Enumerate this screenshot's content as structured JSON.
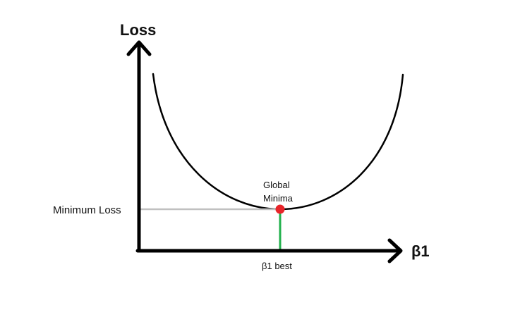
{
  "diagram": {
    "y_axis_label": "Loss",
    "x_axis_label": "β1",
    "minimum_loss_label": "Minimum Loss",
    "global_minima_label_line1": "Global",
    "global_minima_label_line2": "Minima",
    "best_param_label": "β1 best"
  },
  "colors": {
    "axis": "#000000",
    "curve": "#000000",
    "minimum_point": "#e8252a",
    "minimum_loss_line": "#c0c0c0",
    "best_param_line": "#22b14c",
    "background": "#ffffff"
  }
}
